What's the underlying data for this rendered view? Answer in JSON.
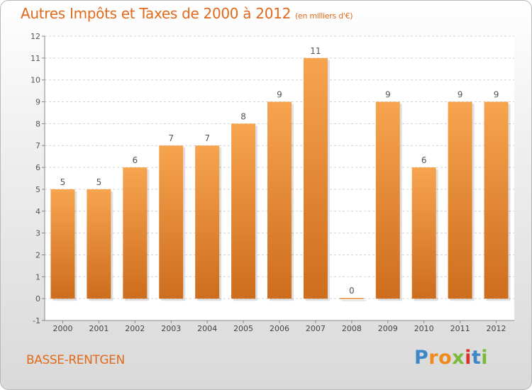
{
  "header": {
    "title": "Autres Impôts et Taxes de 2000 à 2012",
    "unit": "(en milliers d'€)"
  },
  "footer": {
    "commune": "BASSE-RENTGEN",
    "logo": {
      "letters": [
        "P",
        "r",
        "o",
        "x",
        "i",
        "t",
        "i"
      ]
    }
  },
  "colors": {
    "bar_light": "#f7a44f",
    "bar_dark": "#cd6d1e",
    "title": "#e06a1c",
    "logo_letters": [
      "#3f86c8",
      "#f08a1c",
      "#f08a1c",
      "#7ab93b",
      "#d9322a",
      "#3f86c8",
      "#7ab93b"
    ]
  },
  "chart_data": {
    "type": "bar",
    "categories": [
      "2000",
      "2001",
      "2002",
      "2003",
      "2004",
      "2005",
      "2006",
      "2007",
      "2008",
      "2009",
      "2010",
      "2011",
      "2012"
    ],
    "values": [
      5,
      5,
      6,
      7,
      7,
      8,
      9,
      11,
      0,
      9,
      6,
      9,
      9
    ],
    "data_labels": [
      "5",
      "5",
      "6",
      "7",
      "7",
      "8",
      "9",
      "11",
      "0",
      "9",
      "6",
      "9",
      "9"
    ],
    "ylim": [
      -1,
      12
    ],
    "yticks": [
      -1,
      0,
      1,
      2,
      3,
      4,
      5,
      6,
      7,
      8,
      9,
      10,
      11,
      12
    ],
    "grid": "horizontal dashed",
    "xlabel": "",
    "ylabel": ""
  }
}
